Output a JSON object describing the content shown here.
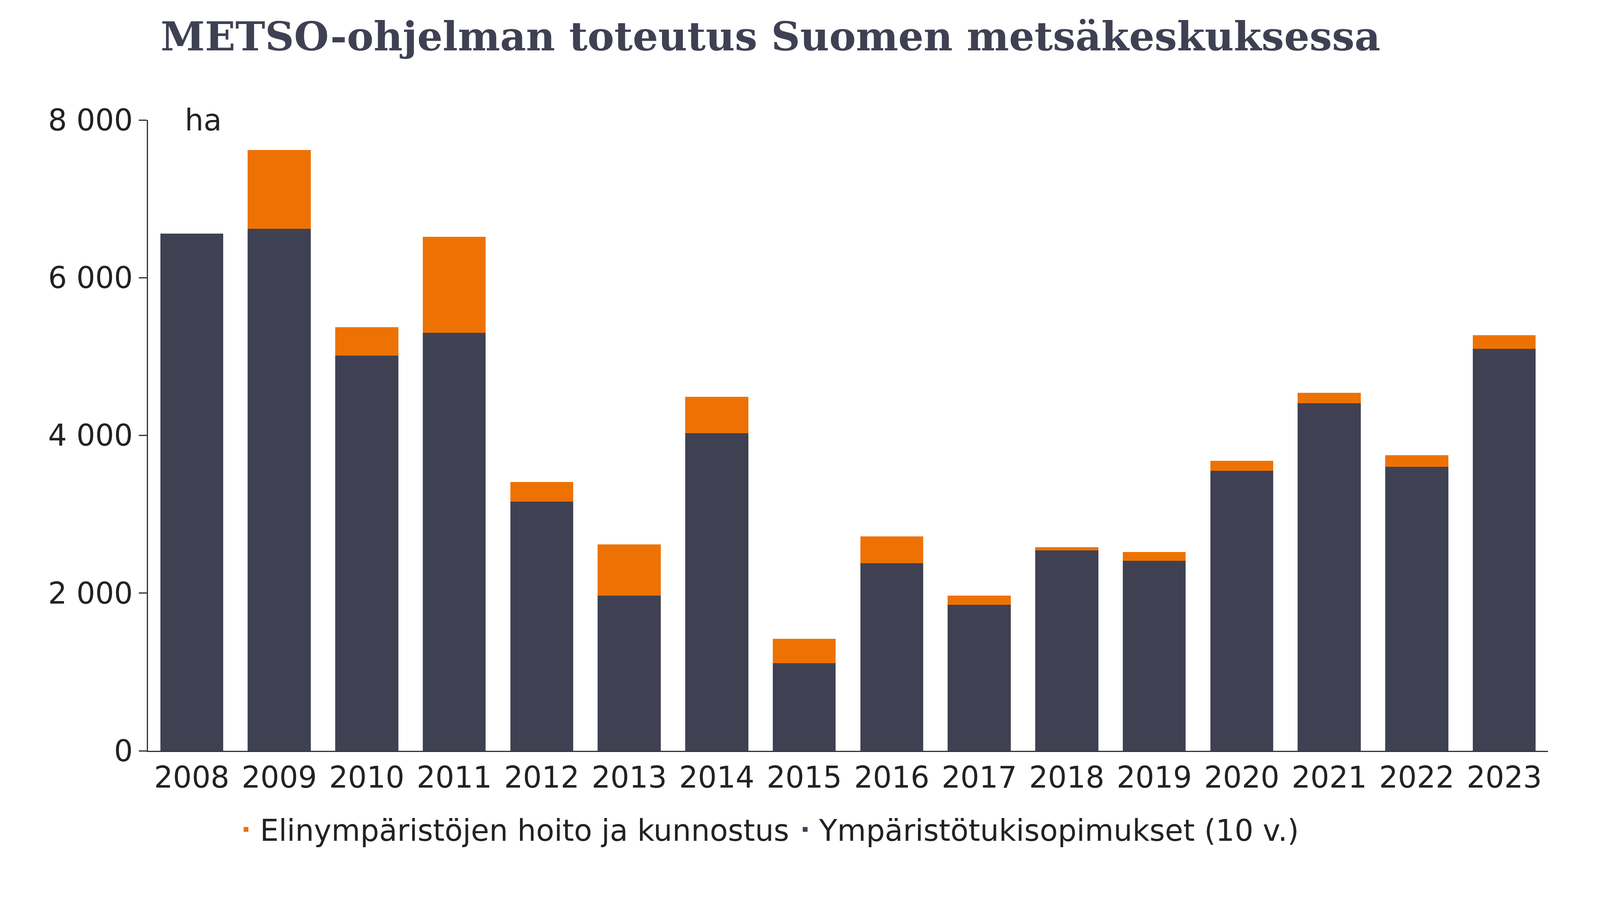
{
  "chart_data": {
    "type": "bar",
    "title": "METSO-ohjelman toteutus Suomen metsäkeskuksessa",
    "ylabel": "ha",
    "stacked": true,
    "grid": false,
    "legend": "bottom",
    "categories": [
      "2008",
      "2009",
      "2010",
      "2011",
      "2012",
      "2013",
      "2014",
      "2015",
      "2016",
      "2017",
      "2018",
      "2019",
      "2020",
      "2021",
      "2022",
      "2023"
    ],
    "series": [
      {
        "name": "Ympäristötukisopimukset (10 v.)",
        "color": "#3f4153",
        "values": [
          6560,
          6620,
          5010,
          5300,
          3160,
          1970,
          4030,
          1110,
          2380,
          1850,
          2540,
          2410,
          3550,
          4410,
          3600,
          5100
        ]
      },
      {
        "name": "Elinympäristöjen hoito ja kunnostus",
        "color": "#ee7203",
        "values": [
          0,
          1000,
          360,
          1220,
          250,
          650,
          460,
          310,
          340,
          120,
          40,
          110,
          130,
          130,
          150,
          170
        ]
      }
    ],
    "ylim": [
      0,
      8000
    ],
    "yticks": [
      0,
      {
        "value": 2000,
        "label": "2 000"
      },
      {
        "value": 4000,
        "label": "4 000"
      },
      {
        "value": 6000,
        "label": "6 000"
      },
      {
        "value": 8000,
        "label": "8 000"
      }
    ]
  }
}
